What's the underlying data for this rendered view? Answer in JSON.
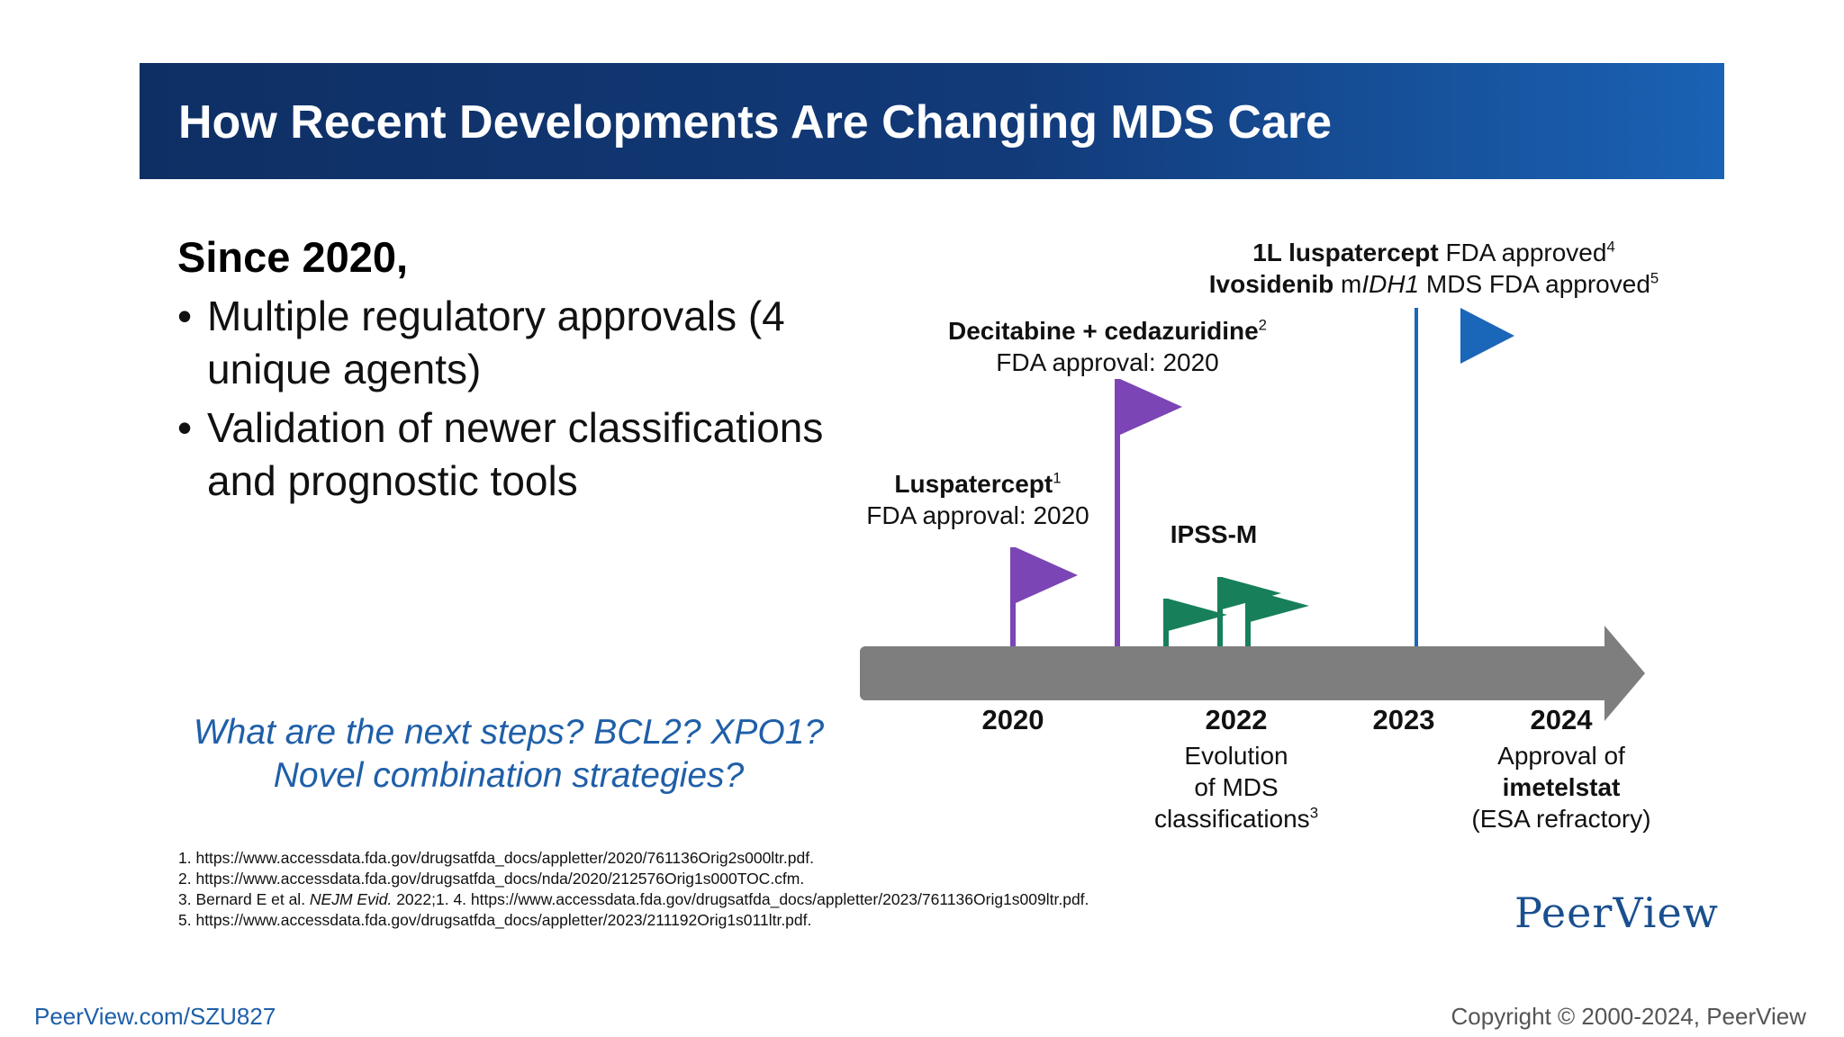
{
  "title": "How Recent Developments Are Changing MDS Care",
  "intro": "Since 2020,",
  "bullets": [
    "Multiple regulatory approvals (4 unique agents)",
    "Validation of newer classifications and prognostic tools"
  ],
  "bullet_symbol": "•",
  "question": {
    "line1": "What are the next steps? BCL2? XPO1?",
    "line2": "Novel combination strategies?"
  },
  "timeline": {
    "milestones": {
      "luspatercept": {
        "name": "Luspatercept",
        "ref": "1",
        "detail": "FDA approval: 2020"
      },
      "decitabine": {
        "name": "Decitabine + cedazuridine",
        "ref": "2",
        "detail": "FDA approval: 2020"
      },
      "ipssm": {
        "name": "IPSS-M"
      },
      "luspatercept_1l": {
        "name": "1L luspatercept",
        "detail": "FDA approved",
        "ref": "4"
      },
      "ivosidenib": {
        "name": "Ivosidenib",
        "prefix": " m",
        "gene": "IDH1",
        "detail": " MDS FDA approved",
        "ref": "5"
      }
    },
    "years": {
      "y2020": "2020",
      "y2022": "2022",
      "y2023": "2023",
      "y2024": "2024"
    },
    "captions": {
      "c2022_l1": "Evolution",
      "c2022_l2": "of MDS",
      "c2022_l3": "classifications",
      "c2022_ref": "3",
      "c2024_l1": "Approval of",
      "c2024_l2": "imetelstat",
      "c2024_l3": "(ESA refractory)"
    },
    "colors": {
      "purple": "#7b45b5",
      "green": "#17805a",
      "blue": "#1a66b8",
      "bar": "#7e7e7e"
    }
  },
  "references": {
    "r1": "1. https://www.accessdata.fda.gov/drugsatfda_docs/appletter/2020/761136Orig2s000ltr.pdf.",
    "r2": "2. https://www.accessdata.fda.gov/drugsatfda_docs/nda/2020/212576Orig1s000TOC.cfm.",
    "r3_a": "3. Bernard E et al. ",
    "r3_journal": "NEJM Evid.",
    "r3_b": " 2022;1. 4. https://www.accessdata.fda.gov/drugsatfda_docs/appletter/2023/761136Orig1s009ltr.pdf.",
    "r5": "5. https://www.accessdata.fda.gov/drugsatfda_docs/appletter/2023/211192Orig1s011ltr.pdf."
  },
  "logo": "PeerView",
  "footer": {
    "link": "PeerView.com/SZU827",
    "copyright": "Copyright © 2000-2024, PeerView"
  }
}
